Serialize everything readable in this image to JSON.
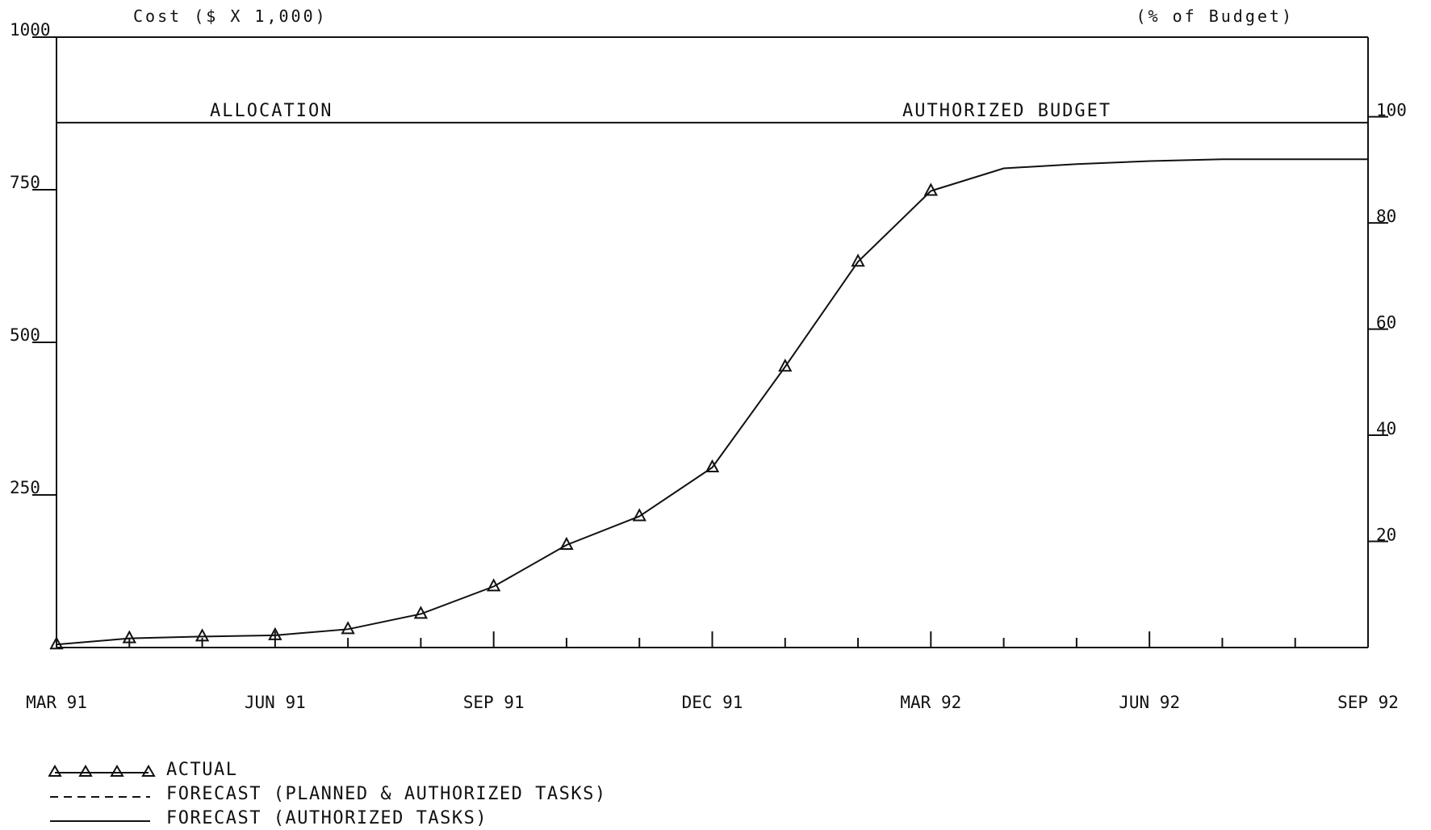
{
  "chart_data": {
    "type": "line",
    "left_axis_title": "Cost ($ X 1,000)",
    "right_axis_title": "(% of Budget)",
    "x_tick_labels": [
      "MAR 91",
      "JUN 91",
      "SEP 91",
      "DEC 91",
      "MAR 92",
      "JUN 92",
      "SEP 92"
    ],
    "y_left_ticks": [
      "1000",
      "750",
      "500",
      "250"
    ],
    "y_right_ticks": [
      "100",
      "80",
      "60",
      "40",
      "20"
    ],
    "y_left_range": [
      0,
      1000
    ],
    "y_right_range": [
      0,
      115
    ],
    "x_range": [
      "1991-03",
      "1992-09"
    ],
    "reference_lines": [
      {
        "name": "allocation",
        "label": "ALLOCATION",
        "value": 860
      },
      {
        "name": "authorized-budget",
        "label": "AUTHORIZED BUDGET",
        "value": 860
      }
    ],
    "series": [
      {
        "name": "ACTUAL",
        "marker": "triangle",
        "x": [
          "1991-03",
          "1991-04",
          "1991-05",
          "1991-06",
          "1991-07",
          "1991-08",
          "1991-09",
          "1991-10",
          "1991-11",
          "1991-12",
          "1992-01",
          "1992-02",
          "1992-03"
        ],
        "values": [
          5,
          15,
          18,
          20,
          30,
          55,
          100,
          168,
          215,
          295,
          460,
          632,
          748
        ]
      },
      {
        "name": "FORECAST (AUTHORIZED TASKS)",
        "marker": "none",
        "x": [
          "1992-03",
          "1992-04",
          "1992-05",
          "1992-06",
          "1992-07",
          "1992-08",
          "1992-09"
        ],
        "values": [
          748,
          785,
          792,
          797,
          800,
          800,
          800
        ]
      }
    ],
    "legend": [
      {
        "label": "ACTUAL",
        "style": "solid-triangles"
      },
      {
        "label": "FORECAST (PLANNED & AUTHORIZED TASKS)",
        "style": "dashed"
      },
      {
        "label": "FORECAST (AUTHORIZED TASKS)",
        "style": "solid"
      }
    ],
    "grid": false
  }
}
